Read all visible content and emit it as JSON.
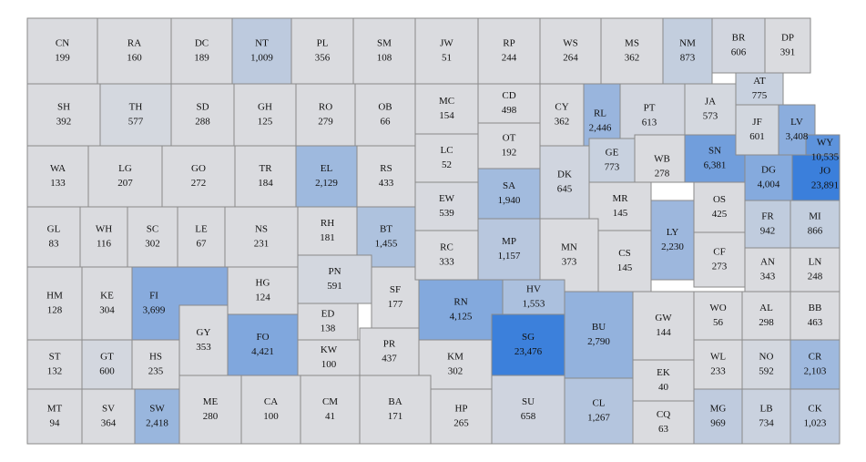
{
  "counties": [
    {
      "code": "CN",
      "value": 199
    },
    {
      "code": "RA",
      "value": 160
    },
    {
      "code": "DC",
      "value": 189
    },
    {
      "code": "NT",
      "value": 1009,
      "value_label": "1,009"
    },
    {
      "code": "PL",
      "value": 356
    },
    {
      "code": "SM",
      "value": 108
    },
    {
      "code": "JW",
      "value": 51
    },
    {
      "code": "RP",
      "value": 244
    },
    {
      "code": "WS",
      "value": 264
    },
    {
      "code": "MS",
      "value": 362
    },
    {
      "code": "NM",
      "value": 873
    },
    {
      "code": "BR",
      "value": 606
    },
    {
      "code": "DP",
      "value": 391
    },
    {
      "code": "SH",
      "value": 392
    },
    {
      "code": "TH",
      "value": 577
    },
    {
      "code": "SD",
      "value": 288
    },
    {
      "code": "GH",
      "value": 125
    },
    {
      "code": "RO",
      "value": 279
    },
    {
      "code": "OB",
      "value": 66
    },
    {
      "code": "MC",
      "value": 154
    },
    {
      "code": "CD",
      "value": 498
    },
    {
      "code": "CY",
      "value": 362
    },
    {
      "code": "RL",
      "value": 2446,
      "value_label": "2,446"
    },
    {
      "code": "PT",
      "value": 613
    },
    {
      "code": "JA",
      "value": 573
    },
    {
      "code": "AT",
      "value": 775
    },
    {
      "code": "WA",
      "value": 133
    },
    {
      "code": "LG",
      "value": 207
    },
    {
      "code": "GO",
      "value": 272
    },
    {
      "code": "TR",
      "value": 184
    },
    {
      "code": "EL",
      "value": 2129,
      "value_label": "2,129"
    },
    {
      "code": "RS",
      "value": 433
    },
    {
      "code": "LC",
      "value": 52
    },
    {
      "code": "OT",
      "value": 192
    },
    {
      "code": "DK",
      "value": 645
    },
    {
      "code": "GE",
      "value": 773
    },
    {
      "code": "WB",
      "value": 278
    },
    {
      "code": "SN",
      "value": 6381,
      "value_label": "6,381"
    },
    {
      "code": "JF",
      "value": 601
    },
    {
      "code": "LV",
      "value": 3408,
      "value_label": "3,408"
    },
    {
      "code": "WY",
      "value": 10535,
      "value_label": "10,535"
    },
    {
      "code": "JO",
      "value": 23891,
      "value_label": "23,891"
    },
    {
      "code": "DG",
      "value": 4004,
      "value_label": "4,004"
    },
    {
      "code": "GL",
      "value": 83
    },
    {
      "code": "WH",
      "value": 116
    },
    {
      "code": "SC",
      "value": 302
    },
    {
      "code": "LE",
      "value": 67
    },
    {
      "code": "NS",
      "value": 231
    },
    {
      "code": "RH",
      "value": 181
    },
    {
      "code": "BT",
      "value": 1455,
      "value_label": "1,455"
    },
    {
      "code": "EW",
      "value": 539
    },
    {
      "code": "SA",
      "value": 1940,
      "value_label": "1,940"
    },
    {
      "code": "MR",
      "value": 145
    },
    {
      "code": "LY",
      "value": 2230,
      "value_label": "2,230"
    },
    {
      "code": "OS",
      "value": 425
    },
    {
      "code": "FR",
      "value": 942
    },
    {
      "code": "MI",
      "value": 866
    },
    {
      "code": "HM",
      "value": 128
    },
    {
      "code": "KE",
      "value": 304
    },
    {
      "code": "FI",
      "value": 3699,
      "value_label": "3,699"
    },
    {
      "code": "HG",
      "value": 124
    },
    {
      "code": "PN",
      "value": 591
    },
    {
      "code": "SF",
      "value": 177
    },
    {
      "code": "RC",
      "value": 333
    },
    {
      "code": "MP",
      "value": 1157,
      "value_label": "1,157"
    },
    {
      "code": "MN",
      "value": 373
    },
    {
      "code": "CS",
      "value": 145
    },
    {
      "code": "CF",
      "value": 273
    },
    {
      "code": "AN",
      "value": 343
    },
    {
      "code": "LN",
      "value": 248
    },
    {
      "code": "GY",
      "value": 353
    },
    {
      "code": "FO",
      "value": 4421,
      "value_label": "4,421"
    },
    {
      "code": "ED",
      "value": 138
    },
    {
      "code": "RN",
      "value": 4125,
      "value_label": "4,125"
    },
    {
      "code": "HV",
      "value": 1553,
      "value_label": "1,553"
    },
    {
      "code": "BU",
      "value": 2790,
      "value_label": "2,790"
    },
    {
      "code": "GW",
      "value": 144
    },
    {
      "code": "WO",
      "value": 56
    },
    {
      "code": "AL",
      "value": 298
    },
    {
      "code": "BB",
      "value": 463
    },
    {
      "code": "ST",
      "value": 132
    },
    {
      "code": "GT",
      "value": 600
    },
    {
      "code": "HS",
      "value": 235
    },
    {
      "code": "KW",
      "value": 100
    },
    {
      "code": "PR",
      "value": 437
    },
    {
      "code": "KM",
      "value": 302
    },
    {
      "code": "SG",
      "value": 23476,
      "value_label": "23,476"
    },
    {
      "code": "EK",
      "value": 40
    },
    {
      "code": "WL",
      "value": 233
    },
    {
      "code": "NO",
      "value": 592
    },
    {
      "code": "CR",
      "value": 2103,
      "value_label": "2,103"
    },
    {
      "code": "MT",
      "value": 94
    },
    {
      "code": "SV",
      "value": 364
    },
    {
      "code": "SW",
      "value": 2418,
      "value_label": "2,418"
    },
    {
      "code": "ME",
      "value": 280
    },
    {
      "code": "CA",
      "value": 100
    },
    {
      "code": "CM",
      "value": 41
    },
    {
      "code": "BA",
      "value": 171
    },
    {
      "code": "HP",
      "value": 265
    },
    {
      "code": "SU",
      "value": 658
    },
    {
      "code": "CL",
      "value": 1267,
      "value_label": "1,267"
    },
    {
      "code": "CQ",
      "value": 63
    },
    {
      "code": "MG",
      "value": 969
    },
    {
      "code": "LB",
      "value": 734
    },
    {
      "code": "CK",
      "value": 1023,
      "value_label": "1,023"
    }
  ]
}
